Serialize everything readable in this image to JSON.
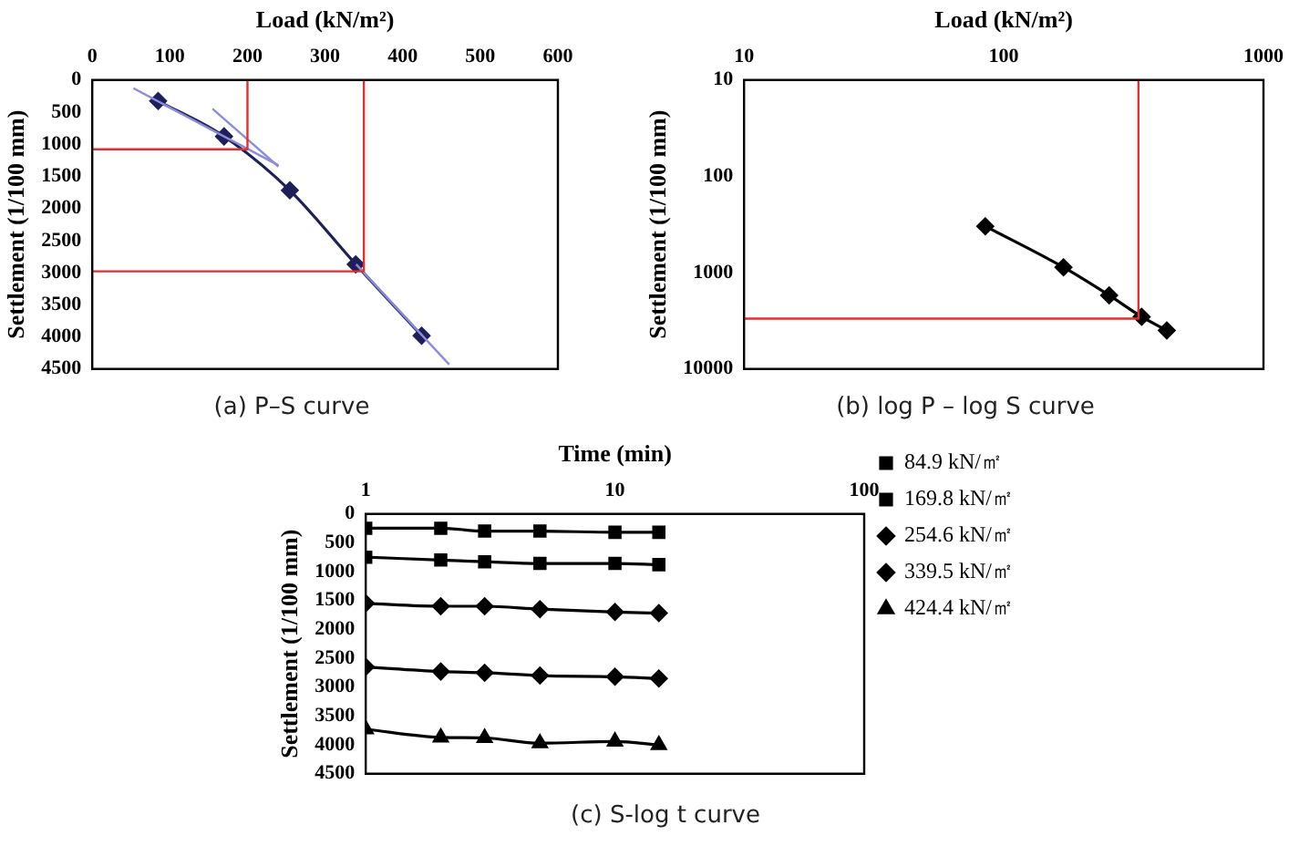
{
  "chart_data": [
    {
      "type": "line",
      "xlabel": "Load (kN/m²)",
      "ylabel": "Settlement (1/100 mm)",
      "annotations": [
        "(a) P–S curve"
      ],
      "xlim": [
        0,
        600
      ],
      "xticks": [
        0,
        100,
        200,
        300,
        400,
        500,
        600
      ],
      "ylim": [
        4500,
        0
      ],
      "yticks": [
        0,
        500,
        1000,
        1500,
        2000,
        2500,
        3000,
        3500,
        4000,
        4500
      ],
      "grid": false,
      "legend": false,
      "series": [
        {
          "color": "#e03030",
          "marker": "none",
          "x": [
            0,
            200,
            200
          ],
          "values": [
            1080,
            1080,
            0
          ]
        },
        {
          "color": "#e03030",
          "marker": "none",
          "x": [
            0,
            350,
            350
          ],
          "values": [
            2980,
            2980,
            0
          ]
        },
        {
          "color": "#8c8cdc",
          "marker": "none",
          "x": [
            53,
            240
          ],
          "values": [
            130,
            1330
          ]
        },
        {
          "color": "#8c8cdc",
          "marker": "none",
          "x": [
            155,
            240
          ],
          "values": [
            450,
            1350
          ]
        },
        {
          "color": "#8c8cdc",
          "marker": "none",
          "x": [
            340,
            460
          ],
          "values": [
            2870,
            4430
          ]
        },
        {
          "color": "#1f1f5a",
          "marker": "diamond",
          "x": [
            84.9,
            169.8,
            254.6,
            339.5,
            424.4
          ],
          "values": [
            330,
            880,
            1720,
            2870,
            3980
          ]
        }
      ]
    },
    {
      "type": "line",
      "log": "xy",
      "xlabel": "Load (kN/m²)",
      "ylabel": "Settlement (1/100 mm)",
      "annotations": [
        "(b) log P – log S curve"
      ],
      "xlim": [
        10,
        1000
      ],
      "xticks": [
        10,
        100,
        1000
      ],
      "ylim": [
        10000,
        10
      ],
      "yticks": [
        10,
        100,
        1000,
        10000
      ],
      "grid": false,
      "legend": false,
      "series": [
        {
          "color": "#e03030",
          "marker": "none",
          "x": [
            10,
            330,
            330
          ],
          "values": [
            3000,
            3000,
            10
          ]
        },
        {
          "color": "#000000",
          "marker": "diamond",
          "x": [
            84.9,
            169.8,
            254.6,
            339.5,
            424.4
          ],
          "values": [
            330,
            880,
            1720,
            2870,
            3980
          ]
        }
      ]
    },
    {
      "type": "line",
      "log": "x",
      "xlabel": "Time (min)",
      "ylabel": "Settlement (1/100 mm)",
      "annotations": [
        "(c) S-log t curve"
      ],
      "xlim": [
        1,
        100
      ],
      "xticks": [
        1,
        10,
        100
      ],
      "ylim": [
        4500,
        0
      ],
      "yticks": [
        0,
        500,
        1000,
        1500,
        2000,
        2500,
        3000,
        3500,
        4000,
        4500
      ],
      "grid": false,
      "legend": "right",
      "series": [
        {
          "name": "84.9 kN/㎡",
          "color": "#000000",
          "marker": "square",
          "x": [
            1,
            2,
            3,
            5,
            10,
            15
          ],
          "values": [
            250,
            250,
            300,
            300,
            320,
            320
          ]
        },
        {
          "name": "169.8 kN/㎡",
          "color": "#000000",
          "marker": "square",
          "x": [
            1,
            2,
            3,
            5,
            10,
            15
          ],
          "values": [
            750,
            800,
            830,
            860,
            860,
            880
          ]
        },
        {
          "name": "254.6 kN/㎡",
          "color": "#000000",
          "marker": "diamond",
          "x": [
            1,
            2,
            3,
            5,
            10,
            15
          ],
          "values": [
            1550,
            1600,
            1600,
            1650,
            1700,
            1720
          ]
        },
        {
          "name": "339.5 kN/㎡",
          "color": "#000000",
          "marker": "diamond",
          "x": [
            1,
            2,
            3,
            5,
            10,
            15
          ],
          "values": [
            2650,
            2730,
            2750,
            2800,
            2820,
            2850
          ]
        },
        {
          "name": "424.4 kN/㎡",
          "color": "#000000",
          "marker": "triangle",
          "x": [
            1,
            2,
            3,
            5,
            10,
            15
          ],
          "values": [
            3730,
            3870,
            3880,
            3970,
            3940,
            4000
          ]
        }
      ]
    }
  ]
}
